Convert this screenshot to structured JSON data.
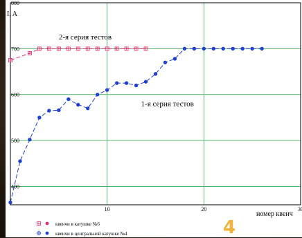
{
  "chart_data": {
    "type": "scatter",
    "ylabel": "I, A",
    "xlabel": "номер квенч",
    "xlim": [
      0,
      30
    ],
    "ylim": [
      360,
      800
    ],
    "x_ticks": [
      10,
      20,
      30
    ],
    "y_ticks": [
      400,
      500,
      600,
      700,
      800
    ],
    "x_tick_labels": [
      "10",
      "20",
      "30"
    ],
    "y_tick_labels": [
      "400",
      "500",
      "600",
      "700",
      "800"
    ],
    "grid": true,
    "annotations": [
      {
        "text": "2-я серия тестов",
        "x": 5,
        "y": 720
      },
      {
        "text": "1-я серия тестов",
        "x": 13.5,
        "y": 575
      }
    ],
    "series": [
      {
        "name": "квенчи в катушке №6",
        "color": "#e0306a",
        "line_style": "dash",
        "marker": "square",
        "points": [
          [
            0,
            675
          ],
          [
            2,
            690
          ],
          [
            3,
            700
          ],
          [
            4,
            700
          ],
          [
            5,
            700
          ],
          [
            6,
            700
          ],
          [
            7,
            700
          ],
          [
            8,
            700
          ],
          [
            9,
            700
          ],
          [
            10,
            700
          ],
          [
            11,
            700
          ],
          [
            12,
            700
          ],
          [
            13,
            700
          ],
          [
            14,
            700
          ]
        ]
      },
      {
        "name": "квенчи в центральной катушке №4",
        "color": "#2040d0",
        "line_style": "dash",
        "marker": "circle",
        "points": [
          [
            0,
            365
          ],
          [
            1,
            455
          ],
          [
            2,
            502
          ],
          [
            3,
            550
          ],
          [
            4,
            565
          ],
          [
            5,
            566
          ],
          [
            6,
            590
          ],
          [
            7,
            578
          ],
          [
            8,
            570
          ],
          [
            9,
            600
          ],
          [
            10,
            610
          ],
          [
            11,
            625
          ],
          [
            12,
            625
          ],
          [
            13,
            620
          ],
          [
            14,
            628
          ],
          [
            15,
            645
          ],
          [
            16,
            670
          ],
          [
            17,
            678
          ],
          [
            18,
            700
          ],
          [
            19,
            700
          ],
          [
            20,
            700
          ],
          [
            21,
            700
          ],
          [
            22,
            700
          ],
          [
            23,
            700
          ],
          [
            24,
            700
          ],
          [
            25,
            700
          ],
          [
            26,
            700
          ]
        ]
      }
    ],
    "legend": {
      "placement": "bottom-left",
      "items": [
        {
          "label": "квенчи в катушке №6",
          "color": "#e0306a",
          "markers": [
            "plus-square",
            "circle"
          ]
        },
        {
          "label": "квенчи в центральной катушке №4",
          "color": "#2040d0",
          "markers": [
            "plus-circle",
            "circle"
          ]
        }
      ]
    }
  },
  "slide_number": "4"
}
